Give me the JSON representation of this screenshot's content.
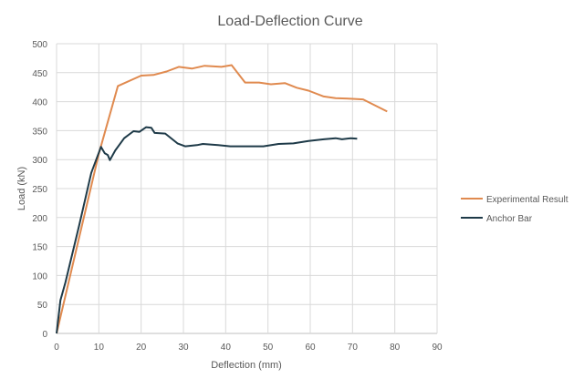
{
  "chart_data": {
    "type": "line",
    "title": "Load-Deflection Curve",
    "xlabel": "Deflection (mm)",
    "ylabel": "Load (kN)",
    "xlim": [
      0,
      90
    ],
    "ylim": [
      0,
      500
    ],
    "xticks": [
      0,
      10,
      20,
      30,
      40,
      50,
      60,
      70,
      80,
      90
    ],
    "yticks": [
      0,
      50,
      100,
      150,
      200,
      250,
      300,
      350,
      400,
      450,
      500
    ],
    "grid": true,
    "legend_position": "right",
    "series": [
      {
        "name": "Experimental Result",
        "color": "#E08A4F",
        "x": [
          0,
          10,
          14.5,
          20,
          22.9,
          26,
          28.9,
          32,
          35,
          39,
          41.4,
          44.6,
          47.9,
          50.7,
          54,
          56.8,
          59.6,
          63.2,
          66,
          69.6,
          72.5,
          78.2
        ],
        "y": [
          0,
          310,
          427,
          445,
          446,
          452,
          460,
          457,
          462,
          460,
          463,
          433,
          433,
          430,
          432,
          424,
          419,
          409,
          406,
          405,
          404,
          383
        ]
      },
      {
        "name": "Anchor Bar",
        "color": "#1E3A48",
        "x": [
          0,
          0.9,
          2.1,
          5.4,
          8.2,
          10.5,
          11.4,
          12.1,
          12.6,
          13.9,
          16,
          18.2,
          19.6,
          21.2,
          22.4,
          23.2,
          25.7,
          28.6,
          30.4,
          33.2,
          34.6,
          38.2,
          41.1,
          45.4,
          48.9,
          52.5,
          56,
          59.6,
          63.2,
          66,
          67.5,
          69.6,
          71.1
        ],
        "y": [
          0,
          57,
          88,
          188,
          277,
          322,
          311,
          308,
          299,
          316,
          337,
          349,
          348,
          356,
          355,
          346,
          345,
          328,
          323,
          325,
          327,
          325,
          323,
          323,
          323,
          327,
          328,
          332,
          335,
          337,
          335,
          337,
          336
        ]
      }
    ]
  }
}
